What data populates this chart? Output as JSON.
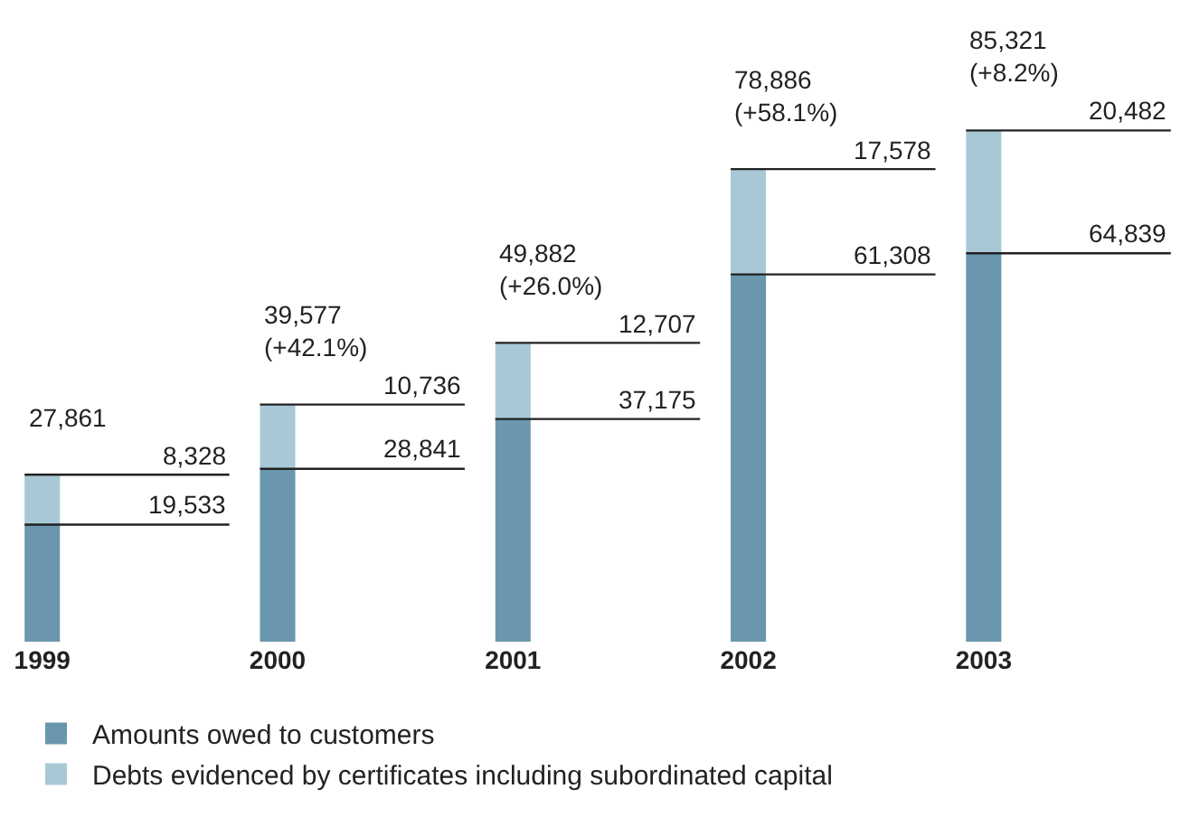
{
  "chart_data": {
    "type": "bar",
    "stacked": true,
    "categories": [
      "1999",
      "2000",
      "2001",
      "2002",
      "2003"
    ],
    "series": [
      {
        "name": "Amounts owed to customers",
        "color": "#6a97ad",
        "values": [
          19533,
          28841,
          37175,
          61308,
          64839
        ],
        "value_labels": [
          "19,533",
          "28,841",
          "37,175",
          "61,308",
          "64,839"
        ]
      },
      {
        "name": "Debts evidenced by certificates including subordinated capital",
        "color": "#a9c8d6",
        "values": [
          8328,
          10736,
          12707,
          17578,
          20482
        ],
        "value_labels": [
          "8,328",
          "10,736",
          "12,707",
          "17,578",
          "20,482"
        ]
      }
    ],
    "totals": [
      "27,861",
      "39,577\n(+42.1%)",
      "49,882\n(+26.0%)",
      "78,886\n(+58.1%)",
      "85,321\n(+8.2%)"
    ],
    "legend": "bottom"
  }
}
